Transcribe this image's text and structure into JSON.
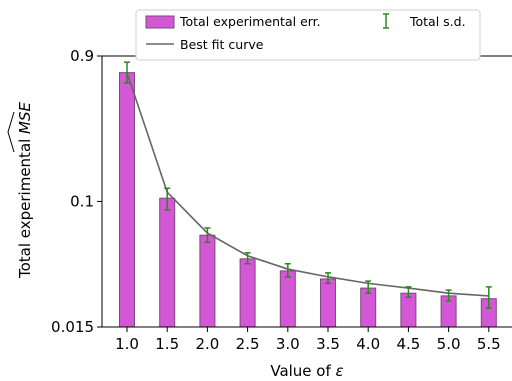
{
  "chart_data": {
    "type": "bar",
    "x_label_prefix": "Value of ",
    "x_label_symbol": "ε",
    "ylabel_prefix": "Total experimental ",
    "ylabel_symbol": "MSE",
    "ylabel_symbol_note": "MSE with a wide hat accent",
    "y_scale": "log",
    "ylim": [
      0.015,
      0.9
    ],
    "y_ticks": [
      "0.9",
      "0.1",
      "0.015"
    ],
    "categories": [
      "1.0",
      "1.5",
      "2.0",
      "2.5",
      "3.0",
      "3.5",
      "4.0",
      "4.5",
      "5.0",
      "5.5"
    ],
    "series": [
      {
        "name": "Total experimental err.",
        "kind": "bar",
        "color": "#d457d6",
        "edge_color": "#7a4a7c",
        "values": [
          0.7,
          0.105,
          0.06,
          0.042,
          0.035,
          0.031,
          0.027,
          0.025,
          0.024,
          0.023
        ]
      },
      {
        "name": "Best fit curve",
        "kind": "line",
        "color": "#666666",
        "values": [
          0.7,
          0.115,
          0.062,
          0.044,
          0.036,
          0.032,
          0.029,
          0.027,
          0.025,
          0.024
        ]
      },
      {
        "name": "Total s.d.",
        "kind": "errorbar",
        "color": "#2a8a1a",
        "low": [
          0.6,
          0.088,
          0.054,
          0.039,
          0.032,
          0.029,
          0.025,
          0.0235,
          0.0222,
          0.02
        ],
        "high": [
          0.82,
          0.122,
          0.067,
          0.046,
          0.039,
          0.034,
          0.03,
          0.0275,
          0.0262,
          0.0275
        ]
      }
    ],
    "legend": {
      "placement": "top",
      "entries": [
        "Total experimental err.",
        "Best fit curve",
        "Total s.d."
      ]
    },
    "grid": false
  }
}
